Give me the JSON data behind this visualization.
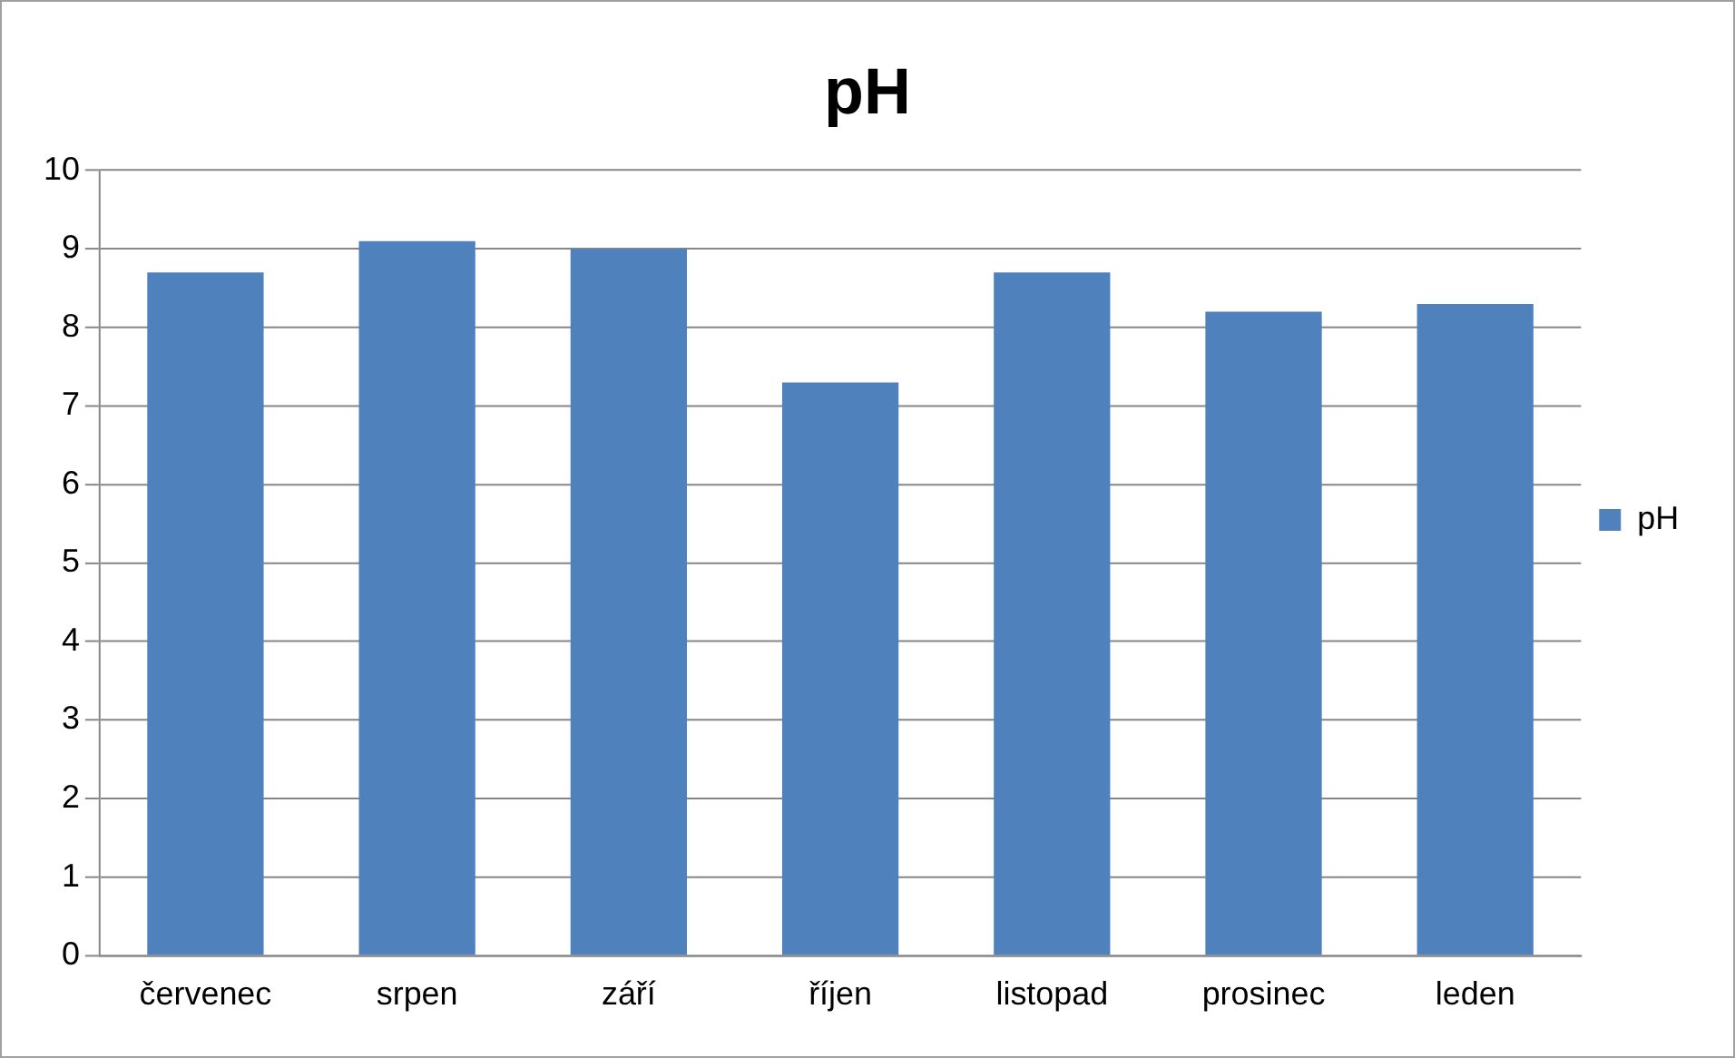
{
  "chart_data": {
    "type": "bar",
    "title": "pH",
    "categories": [
      "červenec",
      "srpen",
      "září",
      "říjen",
      "listopad",
      "prosinec",
      "leden"
    ],
    "series": [
      {
        "name": "pH",
        "color": "#4f81bd",
        "values": [
          8.7,
          9.1,
          9.0,
          7.3,
          8.7,
          8.2,
          8.3
        ]
      }
    ],
    "ylim": [
      0,
      10
    ],
    "yticks": [
      0,
      1,
      2,
      3,
      4,
      5,
      6,
      7,
      8,
      9,
      10
    ],
    "grid": "y",
    "legend": "right"
  }
}
